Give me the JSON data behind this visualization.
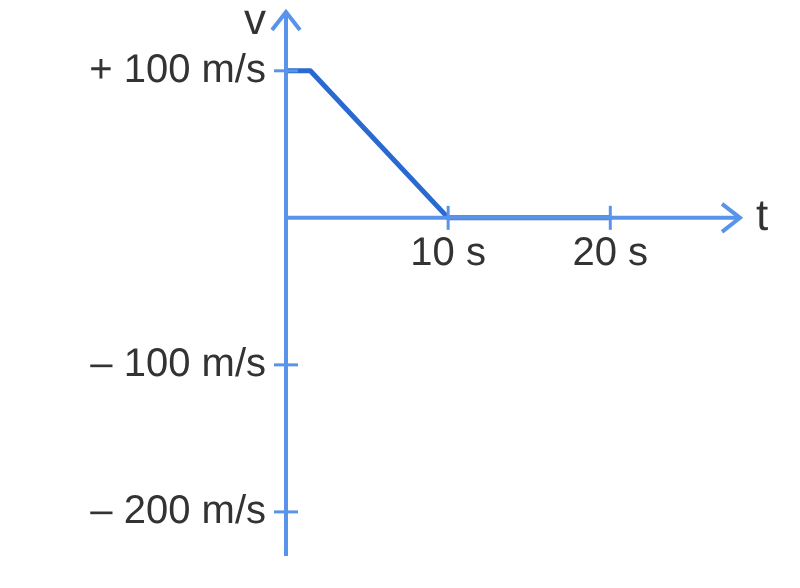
{
  "chart_data": {
    "type": "line",
    "xlabel": "t",
    "ylabel": "v",
    "x": [
      0,
      1.5,
      10,
      20
    ],
    "series": [
      {
        "color": "#2a6ad0",
        "values": [
          100,
          100,
          0,
          0
        ]
      }
    ],
    "xlim": [
      0,
      28
    ],
    "ylim": [
      -230,
      140
    ],
    "xticks": [
      {
        "value": 10,
        "label": "10 s"
      },
      {
        "value": 20,
        "label": "20 s"
      }
    ],
    "yticks": [
      {
        "value": 100,
        "label": "+ 100 m/s"
      },
      {
        "value": -100,
        "label": "– 100 m/s"
      },
      {
        "value": -200,
        "label": "– 200 m/s"
      }
    ],
    "grid": false,
    "legend": false,
    "marker": "none",
    "line_style": "solid"
  }
}
